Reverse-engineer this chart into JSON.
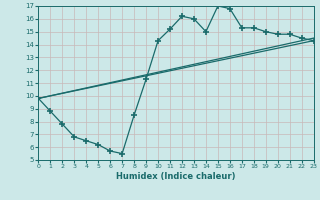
{
  "xlabel": "Humidex (Indice chaleur)",
  "bg_color": "#cce8e8",
  "line_color": "#1a6b6b",
  "grid_color": "#aacccc",
  "xlim": [
    0,
    23
  ],
  "ylim": [
    5,
    17
  ],
  "xticks": [
    0,
    1,
    2,
    3,
    4,
    5,
    6,
    7,
    8,
    9,
    10,
    11,
    12,
    13,
    14,
    15,
    16,
    17,
    18,
    19,
    20,
    21,
    22,
    23
  ],
  "yticks": [
    5,
    6,
    7,
    8,
    9,
    10,
    11,
    12,
    13,
    14,
    15,
    16,
    17
  ],
  "curve_x": [
    0,
    1,
    2,
    3,
    4,
    5,
    6,
    7,
    8,
    9,
    10,
    11,
    12,
    13,
    14,
    15,
    16,
    17,
    18,
    19,
    20,
    21,
    22,
    23
  ],
  "curve_y": [
    9.8,
    8.8,
    7.8,
    6.8,
    6.5,
    6.2,
    5.7,
    5.5,
    8.5,
    11.3,
    14.3,
    15.2,
    16.2,
    16.0,
    15.0,
    17.0,
    16.8,
    15.3,
    15.3,
    15.0,
    14.8,
    14.8,
    14.5,
    14.3
  ],
  "line2_x": [
    0,
    23
  ],
  "line2_y": [
    9.8,
    14.5
  ],
  "line3_x": [
    0,
    23
  ],
  "line3_y": [
    9.8,
    14.3
  ]
}
